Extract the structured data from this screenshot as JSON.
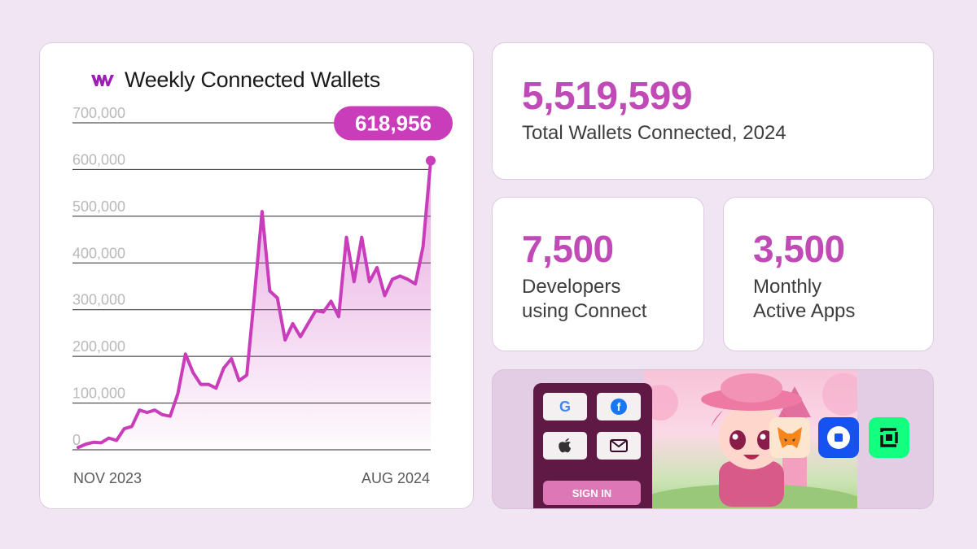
{
  "chart_data": {
    "type": "area",
    "title": "Weekly Connected Wallets",
    "xlabel": "",
    "ylabel": "",
    "x_start_label": "NOV 2023",
    "x_end_label": "AUG 2024",
    "ylim": [
      0,
      700000
    ],
    "y_ticks": [
      {
        "value": 700000,
        "label": "700,000"
      },
      {
        "value": 600000,
        "label": "600,000"
      },
      {
        "value": 500000,
        "label": "500,000"
      },
      {
        "value": 400000,
        "label": "400,000"
      },
      {
        "value": 300000,
        "label": "300,000"
      },
      {
        "value": 200000,
        "label": "200,000"
      },
      {
        "value": 100000,
        "label": "100,000"
      },
      {
        "value": 0,
        "label": "0"
      }
    ],
    "series": [
      {
        "name": "Weekly Connected Wallets",
        "values": [
          5000,
          12000,
          16000,
          15000,
          25000,
          20000,
          45000,
          50000,
          85000,
          80000,
          85000,
          75000,
          72000,
          120000,
          205000,
          165000,
          140000,
          140000,
          132000,
          175000,
          195000,
          148000,
          160000,
          330000,
          510000,
          340000,
          325000,
          235000,
          270000,
          242000,
          270000,
          298000,
          295000,
          318000,
          285000,
          455000,
          360000,
          455000,
          360000,
          390000,
          330000,
          365000,
          372000,
          365000,
          355000,
          435000,
          618956
        ]
      }
    ],
    "highlight": {
      "value": 618956,
      "label": "618,956"
    },
    "grid": true,
    "line_color": "#c93cba"
  },
  "stats": {
    "total": {
      "value": "5,519,599",
      "label": "Total Wallets Connected, 2024"
    },
    "developers": {
      "value": "7,500",
      "label_line1": "Developers",
      "label_line2": "using Connect"
    },
    "apps": {
      "value": "3,500",
      "label_line1": "Monthly",
      "label_line2": "Active Apps"
    }
  },
  "promo": {
    "sign_in_label": "SIGN IN",
    "buttons": [
      "google-icon",
      "facebook-icon",
      "apple-icon",
      "mail-icon"
    ],
    "wallets": [
      "metamask-icon",
      "coinbase-icon",
      "safe-wallet-icon"
    ]
  },
  "colors": {
    "background": "#f0e6f1",
    "accent": "#c04bb6",
    "line": "#c93cba",
    "panel": "#5e1a44"
  }
}
